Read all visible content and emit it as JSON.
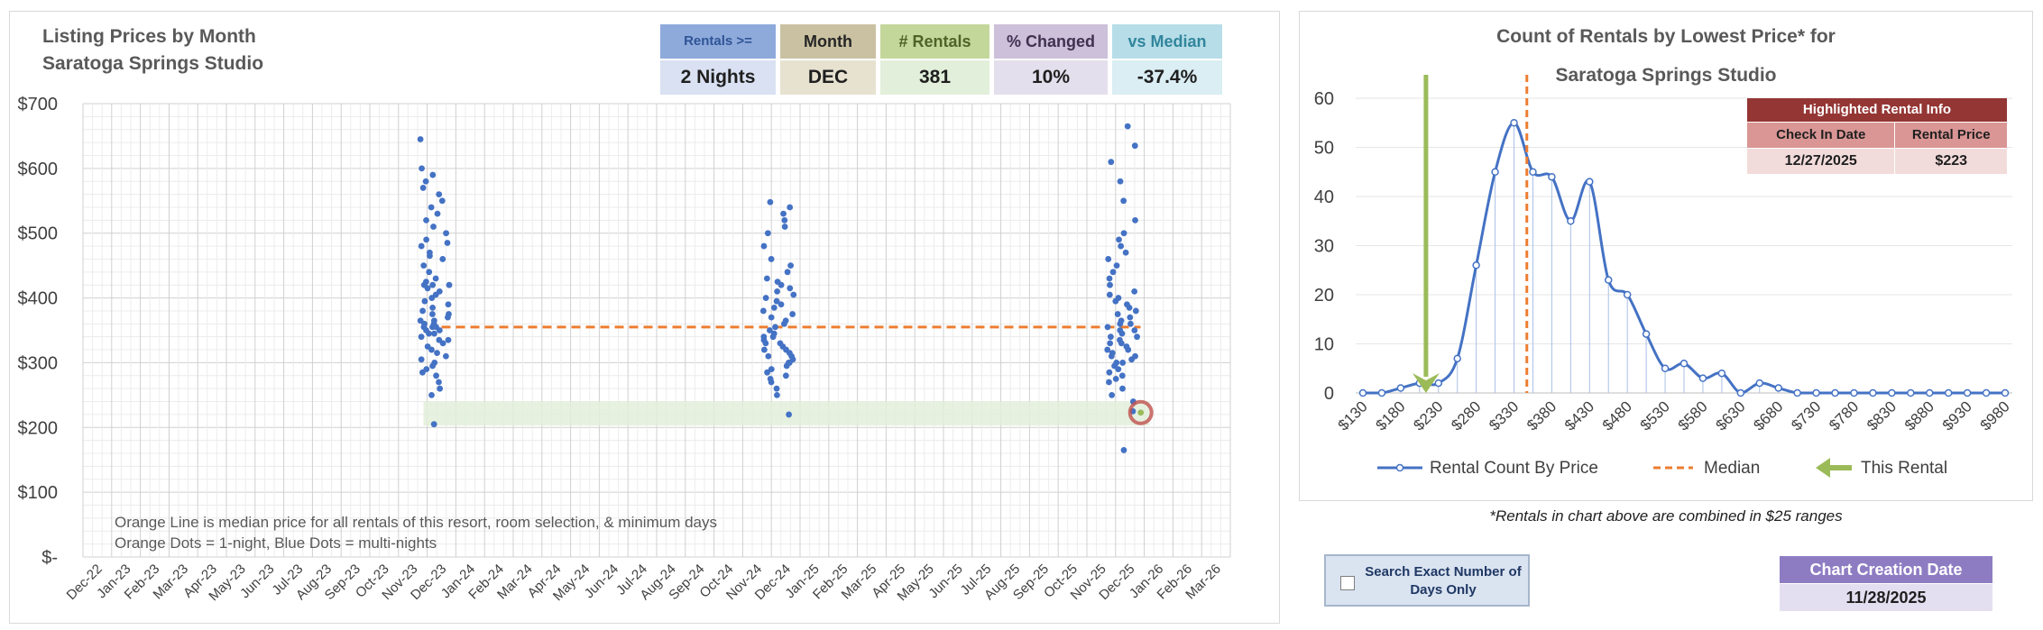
{
  "left_chart": {
    "title_line1": "Listing Prices by Month",
    "title_line2": "Saratoga Springs Studio",
    "y_ticks": [
      "$-",
      "$100",
      "$200",
      "$300",
      "$400",
      "$500",
      "$600",
      "$700"
    ],
    "x_ticks": [
      "Dec-22",
      "Jan-23",
      "Feb-23",
      "Mar-23",
      "Apr-23",
      "May-23",
      "Jun-23",
      "Jul-23",
      "Aug-23",
      "Sep-23",
      "Oct-23",
      "Nov-23",
      "Dec-23",
      "Jan-24",
      "Feb-24",
      "Mar-24",
      "Apr-24",
      "May-24",
      "Jun-24",
      "Jul-24",
      "Aug-24",
      "Sep-24",
      "Oct-24",
      "Nov-24",
      "Dec-24",
      "Jan-25",
      "Feb-25",
      "Mar-25",
      "Apr-25",
      "May-25",
      "Jun-25",
      "Jul-25",
      "Aug-25",
      "Sep-25",
      "Oct-25",
      "Nov-25",
      "Dec-25",
      "Jan-26",
      "Feb-26",
      "Mar-26"
    ],
    "notes": [
      "Orange Line is median price for all rentals of this resort, room selection, & minimum days",
      "Orange Dots = 1-night, Blue Dots = multi-nights"
    ],
    "colors": {
      "dots": "#4472c4",
      "median": "#ed7d31",
      "band": "#e2efda",
      "highlight": "#c0504d"
    }
  },
  "kpis": [
    {
      "header": "Rentals >=",
      "value": "2 Nights",
      "hdr_color": "#8eaadb",
      "val_color": "#d9e1f2",
      "hdr_text": "#2f5496"
    },
    {
      "header": "Month",
      "value": "DEC",
      "hdr_color": "#c9c1a1",
      "val_color": "#e7e2d0",
      "hdr_text": "#262626"
    },
    {
      "header": "# Rentals",
      "value": "381",
      "hdr_color": "#c4d79b",
      "val_color": "#e2efda",
      "hdr_text": "#4f6228"
    },
    {
      "header": "% Changed",
      "value": "10%",
      "hdr_color": "#ccc0da",
      "val_color": "#e4dfec",
      "hdr_text": "#403151"
    },
    {
      "header": "vs Median",
      "value": "-37.4%",
      "hdr_color": "#b7dee8",
      "val_color": "#daeef3",
      "hdr_text": "#31859c"
    }
  ],
  "chart_data": [
    {
      "type": "scatter",
      "title": "Listing Prices by Month Saratoga Springs Studio",
      "ylim": [
        0,
        700
      ],
      "x_range": [
        "Dec-22",
        "Mar-26"
      ],
      "median": 355,
      "median_span": [
        "Dec-23",
        "Jan-26"
      ],
      "highlight_band": [
        203,
        240
      ],
      "highlighted_rental": {
        "x": "Dec-25",
        "y": 223
      },
      "series": [
        {
          "name": "Blue Dots = multi-nights",
          "month": "Dec-23",
          "points": [
            205,
            280,
            285,
            290,
            295,
            300,
            305,
            310,
            315,
            320,
            325,
            330,
            335,
            340,
            345,
            350,
            350,
            355,
            355,
            360,
            360,
            365,
            370,
            375,
            380,
            385,
            390,
            395,
            400,
            405,
            410,
            415,
            420,
            420,
            420,
            425,
            430,
            440,
            450,
            460,
            465,
            470,
            480,
            485,
            490,
            500,
            510,
            520,
            530,
            540,
            550,
            560,
            570,
            580,
            590,
            600,
            645,
            250,
            260,
            270,
            335,
            345,
            355,
            365,
            375
          ]
        },
        {
          "name": "Blue Dots = multi-nights",
          "month": "Dec-24",
          "points": [
            220,
            250,
            260,
            270,
            275,
            280,
            285,
            290,
            295,
            300,
            305,
            310,
            315,
            320,
            325,
            330,
            335,
            340,
            345,
            350,
            355,
            360,
            365,
            370,
            375,
            380,
            385,
            390,
            395,
            400,
            405,
            410,
            415,
            420,
            425,
            430,
            440,
            450,
            460,
            480,
            500,
            510,
            520,
            530,
            540,
            548,
            300,
            310,
            320,
            330,
            340
          ]
        },
        {
          "name": "Blue Dots = multi-nights",
          "month": "Dec-25",
          "points": [
            165,
            225,
            240,
            250,
            260,
            270,
            275,
            280,
            285,
            290,
            295,
            300,
            305,
            310,
            315,
            320,
            325,
            330,
            335,
            340,
            345,
            350,
            355,
            360,
            365,
            370,
            375,
            380,
            385,
            390,
            395,
            400,
            405,
            410,
            420,
            430,
            440,
            450,
            460,
            470,
            480,
            490,
            500,
            520,
            550,
            580,
            610,
            635,
            665,
            300,
            310,
            320,
            330,
            340,
            350,
            360
          ]
        }
      ]
    },
    {
      "type": "line",
      "title": "Count of Rentals by Lowest Price* for Saratoga Springs Studio",
      "ylim": [
        0,
        60
      ],
      "y_ticks": [
        "0",
        "10",
        "20",
        "30",
        "40",
        "50",
        "60"
      ],
      "x_tick_labels": [
        "$130",
        "$180",
        "$230",
        "$280",
        "$330",
        "$380",
        "$430",
        "$480",
        "$530",
        "$580",
        "$630",
        "$680",
        "$730",
        "$780",
        "$830",
        "$880",
        "$930",
        "$980"
      ],
      "x": [
        130,
        155,
        180,
        205,
        230,
        255,
        280,
        305,
        330,
        355,
        380,
        405,
        430,
        455,
        480,
        505,
        530,
        555,
        580,
        605,
        630,
        655,
        680,
        705,
        730,
        755,
        780,
        805,
        830,
        855,
        880,
        905,
        930,
        955,
        980
      ],
      "series": [
        {
          "name": "Rental Count By Price",
          "values": [
            0,
            0,
            1,
            2,
            2,
            7,
            26,
            45,
            55,
            45,
            44,
            35,
            43,
            23,
            20,
            12,
            5,
            6,
            3,
            4,
            0,
            2,
            1,
            0,
            0,
            0,
            0,
            0,
            0,
            0,
            0,
            0,
            0,
            0,
            0
          ]
        }
      ],
      "median": 347,
      "this_rental": 223,
      "legend": [
        "Rental Count By Price",
        "Median",
        "This Rental"
      ],
      "legend_position": "bottom",
      "colors": {
        "line": "#4472c4",
        "median": "#ed7d31",
        "arrow": "#9bbb59"
      }
    }
  ],
  "right_chart": {
    "title_line1": "Count of Rentals by Lowest Price* for",
    "title_line2": "Saratoga Springs Studio",
    "highlight": {
      "title": "Highlighted Rental Info",
      "col1": "Check In Date",
      "col2": "Rental Price",
      "date": "12/27/2025",
      "price": "$223"
    },
    "legend_line": "Rental Count By Price",
    "legend_median": "Median",
    "legend_arrow": "This Rental"
  },
  "footnote": "*Rentals in chart above are combined in $25 ranges",
  "search_option": {
    "label": "Search Exact Number of Days Only"
  },
  "creation": {
    "header": "Chart Creation Date",
    "date": "11/28/2025"
  }
}
